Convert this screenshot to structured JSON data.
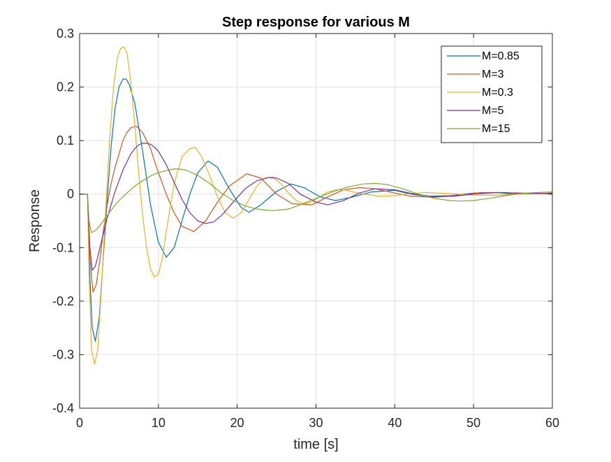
{
  "chart_data": {
    "type": "line",
    "title": "Step response for various M",
    "xlabel": "time [s]",
    "ylabel": "Response",
    "xlim": [
      0,
      60
    ],
    "ylim": [
      -0.4,
      0.3
    ],
    "xticks": [
      0,
      10,
      20,
      30,
      40,
      50,
      60
    ],
    "xtick_labels": [
      "0",
      "10",
      "20",
      "30",
      "40",
      "50",
      "60"
    ],
    "yticks": [
      -0.4,
      -0.3,
      -0.2,
      -0.1,
      0,
      0.1,
      0.2,
      0.3
    ],
    "ytick_labels": [
      "-0.4",
      "-0.3",
      "-0.2",
      "-0.1",
      "0",
      "0.1",
      "0.2",
      "0.3"
    ],
    "grid": true,
    "legend_position": "top-right",
    "series": [
      {
        "name": "M=0.85",
        "color": "#0072BD",
        "x": [
          0,
          1.0,
          1.2,
          1.6,
          2.0,
          2.5,
          3.0,
          3.5,
          4.0,
          4.5,
          5.0,
          5.5,
          5.9,
          6.3,
          7.0,
          8.0,
          9.0,
          10.0,
          11.0,
          12.0,
          13.0,
          14.0,
          15.0,
          16.3,
          17.5,
          19.0,
          20.5,
          21.5,
          23.0,
          25.0,
          26.8,
          28.5,
          30.5,
          32.5,
          34.5,
          37.0,
          40.0,
          42.0,
          44.0,
          47.0,
          50.0,
          53.0,
          55.0,
          57.0,
          60.0
        ],
        "y": [
          0,
          0,
          -0.12,
          -0.25,
          -0.275,
          -0.23,
          -0.12,
          -0.01,
          0.09,
          0.16,
          0.2,
          0.215,
          0.215,
          0.205,
          0.17,
          0.08,
          -0.02,
          -0.09,
          -0.118,
          -0.1,
          -0.05,
          0.0,
          0.04,
          0.062,
          0.05,
          0.01,
          -0.025,
          -0.034,
          -0.02,
          0.005,
          0.019,
          0.012,
          -0.005,
          -0.012,
          -0.006,
          0.004,
          0.007,
          0.0,
          -0.004,
          -0.003,
          0.002,
          0.003,
          0.0,
          0.0,
          0.002
        ]
      },
      {
        "name": "M=3",
        "color": "#D95319",
        "x": [
          0,
          1.0,
          1.3,
          1.7,
          2.1,
          2.6,
          3.0,
          3.5,
          4.0,
          4.5,
          5.0,
          5.5,
          6.0,
          6.5,
          7.2,
          8.0,
          9.0,
          10.0,
          11.0,
          12.0,
          13.0,
          14.5,
          16.0,
          17.5,
          19.0,
          21.2,
          23.0,
          25.0,
          27.0,
          29.5,
          31.5,
          33.5,
          35.5,
          37.5,
          40.0,
          42.0,
          45.0,
          48.0,
          51.0,
          54.0,
          57.0,
          60.0
        ],
        "y": [
          0,
          0,
          -0.12,
          -0.183,
          -0.17,
          -0.12,
          -0.07,
          -0.02,
          0.02,
          0.05,
          0.075,
          0.1,
          0.115,
          0.124,
          0.127,
          0.115,
          0.085,
          0.04,
          0.0,
          -0.035,
          -0.06,
          -0.07,
          -0.05,
          -0.015,
          0.015,
          0.038,
          0.03,
          0.0,
          -0.018,
          -0.02,
          -0.005,
          0.008,
          0.012,
          0.01,
          0.002,
          -0.004,
          -0.006,
          -0.002,
          0.003,
          0.003,
          0.0,
          0.002
        ]
      },
      {
        "name": "M=0.3",
        "color": "#EDB120",
        "x": [
          0,
          1.0,
          1.2,
          1.5,
          1.9,
          2.3,
          2.8,
          3.3,
          3.8,
          4.3,
          4.8,
          5.2,
          5.6,
          6.0,
          6.5,
          7.0,
          7.5,
          8.0,
          8.5,
          9.0,
          9.5,
          10.0,
          10.5,
          11.0,
          12.0,
          13.0,
          14.0,
          14.7,
          15.5,
          16.5,
          17.5,
          18.5,
          19.5,
          20.5,
          21.5,
          22.5,
          23.5,
          24.5,
          25.5,
          26.5,
          27.5,
          28.5,
          29.5,
          30.5,
          31.5,
          32.5,
          33.5,
          34.5,
          36.0,
          38.0,
          40.0,
          42.0,
          44.0,
          47.0,
          50.0,
          53.0,
          56.0,
          60.0
        ],
        "y": [
          0,
          0,
          -0.15,
          -0.29,
          -0.318,
          -0.29,
          -0.17,
          -0.03,
          0.1,
          0.2,
          0.255,
          0.272,
          0.275,
          0.265,
          0.21,
          0.13,
          0.04,
          -0.04,
          -0.1,
          -0.14,
          -0.155,
          -0.15,
          -0.12,
          -0.07,
          0.02,
          0.07,
          0.085,
          0.087,
          0.07,
          0.035,
          -0.005,
          -0.035,
          -0.045,
          -0.035,
          -0.01,
          0.015,
          0.03,
          0.032,
          0.02,
          0.002,
          -0.012,
          -0.018,
          -0.014,
          -0.005,
          0.004,
          0.008,
          0.008,
          0.005,
          0.0,
          -0.004,
          -0.003,
          0.001,
          0.003,
          0.001,
          -0.002,
          -0.002,
          0.0,
          0.0
        ]
      },
      {
        "name": "M=5",
        "color": "#7E2F8E",
        "x": [
          0,
          1.0,
          1.3,
          1.6,
          2.0,
          2.5,
          3.0,
          3.5,
          4.0,
          4.5,
          5.0,
          5.5,
          6.0,
          6.5,
          7.0,
          7.5,
          8.0,
          8.5,
          9.0,
          9.5,
          10.0,
          11.0,
          12.0,
          13.0,
          14.0,
          15.0,
          16.0,
          17.0,
          18.0,
          19.5,
          21.0,
          22.5,
          24.0,
          25.0,
          26.5,
          28.0,
          30.0,
          31.5,
          33.5,
          35.5,
          37.5,
          40.0,
          42.5,
          45.0,
          47.5,
          50.0,
          53.0,
          56.0,
          60.0
        ],
        "y": [
          0,
          0,
          -0.1,
          -0.142,
          -0.135,
          -0.105,
          -0.075,
          -0.045,
          -0.02,
          0.005,
          0.025,
          0.045,
          0.06,
          0.075,
          0.085,
          0.092,
          0.095,
          0.095,
          0.093,
          0.088,
          0.08,
          0.055,
          0.022,
          -0.01,
          -0.035,
          -0.05,
          -0.055,
          -0.052,
          -0.04,
          -0.015,
          0.01,
          0.025,
          0.031,
          0.03,
          0.02,
          0.0,
          -0.015,
          -0.02,
          -0.012,
          0.002,
          0.01,
          0.008,
          0.0,
          -0.005,
          -0.004,
          0.0,
          0.003,
          0.002,
          0.001
        ]
      },
      {
        "name": "M=15",
        "color": "#77AC30",
        "x": [
          0,
          1.0,
          1.2,
          1.5,
          2.0,
          2.5,
          3.0,
          3.5,
          4.0,
          5.0,
          6.0,
          7.0,
          8.0,
          9.0,
          10.0,
          11.0,
          12.0,
          12.5,
          13.5,
          15.0,
          16.5,
          18.0,
          19.5,
          21.0,
          22.5,
          24.5,
          26.5,
          28.0,
          30.0,
          32.0,
          34.0,
          36.0,
          37.5,
          39.0,
          41.0,
          43.0,
          45.0,
          47.0,
          48.5,
          50.0,
          52.0,
          54.0,
          56.0,
          58.0,
          60.0
        ],
        "y": [
          0,
          0,
          -0.05,
          -0.072,
          -0.068,
          -0.06,
          -0.05,
          -0.04,
          -0.03,
          -0.012,
          0.002,
          0.015,
          0.025,
          0.034,
          0.04,
          0.044,
          0.047,
          0.047,
          0.045,
          0.035,
          0.02,
          0.002,
          -0.012,
          -0.022,
          -0.028,
          -0.031,
          -0.028,
          -0.02,
          -0.008,
          0.004,
          0.013,
          0.019,
          0.02,
          0.018,
          0.01,
          0.0,
          -0.008,
          -0.012,
          -0.013,
          -0.012,
          -0.008,
          -0.003,
          0.001,
          0.003,
          0.004
        ]
      }
    ]
  }
}
